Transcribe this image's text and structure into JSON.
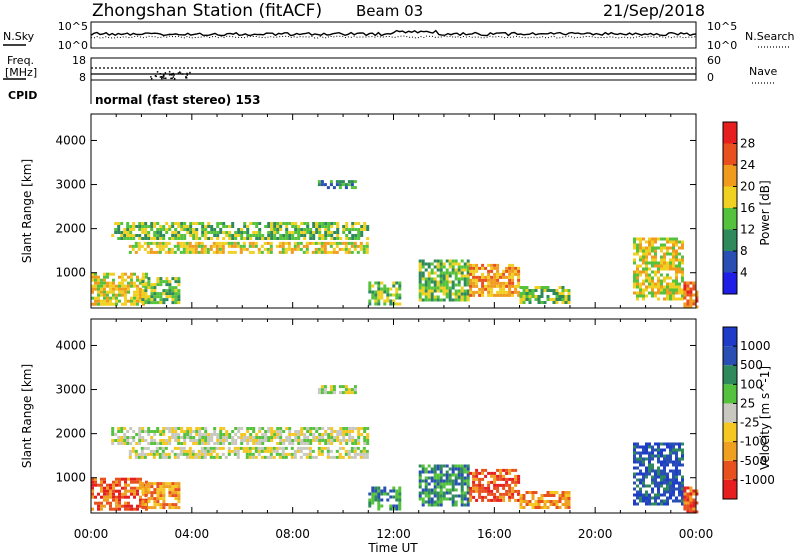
{
  "header": {
    "station": "Zhongshan Station (fitACF)",
    "beam": "Beam 03",
    "date": "21/Sep/2018"
  },
  "noise_panel": {
    "left_label": "N.Sky",
    "right_label": "N.Search",
    "left_ticks": [
      "10^5",
      "10^0"
    ],
    "right_ticks": [
      "10^5",
      "10^0"
    ]
  },
  "freq_panel": {
    "label_line1": "Freq.",
    "label_line2": "[MHz]",
    "left_ticks": [
      "18",
      "8"
    ],
    "right_label": "Nave",
    "right_ticks": [
      "60",
      "0"
    ]
  },
  "cpid": {
    "label": "CPID",
    "text": "normal (fast stereo) 153"
  },
  "time_axis": {
    "label": "Time UT",
    "ticks": [
      "00:00",
      "04:00",
      "08:00",
      "12:00",
      "16:00",
      "20:00",
      "00:00"
    ]
  },
  "colors": {
    "power": [
      "#1e1ee6",
      "#2a4fb4",
      "#2e8a5a",
      "#55c23d",
      "#f0d020",
      "#f09a1e",
      "#e8501e",
      "#e61e1e"
    ],
    "velocity": [
      "#e61e1e",
      "#e8501e",
      "#f0a020",
      "#f4c820",
      "#c8c8c0",
      "#55c23d",
      "#2e8a5a",
      "#2a4fb4",
      "#1e3cc8"
    ]
  },
  "chart_data": [
    {
      "type": "heatmap",
      "title": "",
      "xlabel": "Time UT",
      "ylabel": "Slant Range [km]",
      "xlim": [
        0,
        24
      ],
      "ylim": [
        200,
        4600
      ],
      "yticks": [
        "4000",
        "3000",
        "2000",
        "1000"
      ],
      "colorbar": {
        "label": "Power [dB]",
        "ticks": [
          "28",
          "24",
          "20",
          "16",
          "12",
          "8",
          "4"
        ]
      },
      "echo_regions": [
        {
          "t_start": 0.0,
          "t_end": 2.2,
          "range_min": 300,
          "range_max": 1000,
          "level": 4
        },
        {
          "t_start": 0.8,
          "t_end": 11.0,
          "range_min": 1750,
          "range_max": 2150,
          "level": 3
        },
        {
          "t_start": 1.5,
          "t_end": 11.0,
          "range_min": 1450,
          "range_max": 1700,
          "level": 4
        },
        {
          "t_start": 2.0,
          "t_end": 3.5,
          "range_min": 300,
          "range_max": 900,
          "level": 3
        },
        {
          "t_start": 9.0,
          "t_end": 10.5,
          "range_min": 2900,
          "range_max": 3100,
          "level": 2
        },
        {
          "t_start": 11.0,
          "t_end": 12.2,
          "range_min": 300,
          "range_max": 800,
          "level": 3
        },
        {
          "t_start": 13.0,
          "t_end": 15.0,
          "range_min": 400,
          "range_max": 1300,
          "level": 3
        },
        {
          "t_start": 15.0,
          "t_end": 17.0,
          "range_min": 500,
          "range_max": 1200,
          "level": 5
        },
        {
          "t_start": 17.0,
          "t_end": 19.0,
          "range_min": 300,
          "range_max": 700,
          "level": 3
        },
        {
          "t_start": 21.5,
          "t_end": 23.5,
          "range_min": 400,
          "range_max": 1800,
          "level": 4
        },
        {
          "t_start": 23.5,
          "t_end": 24.0,
          "range_min": 200,
          "range_max": 800,
          "level": 6
        }
      ]
    },
    {
      "type": "heatmap",
      "title": "",
      "xlabel": "Time UT",
      "ylabel": "Slant Range [km]",
      "xlim": [
        0,
        24
      ],
      "ylim": [
        200,
        4600
      ],
      "yticks": [
        "4000",
        "3000",
        "2000",
        "1000"
      ],
      "colorbar": {
        "label": "Velocity [m s^-1]",
        "ticks": [
          "1000",
          "500",
          "100",
          "25",
          "-25",
          "-100",
          "-500",
          "-1000"
        ]
      },
      "echo_regions": [
        {
          "t_start": 0.0,
          "t_end": 2.2,
          "range_min": 300,
          "range_max": 1000,
          "level": 1
        },
        {
          "t_start": 0.8,
          "t_end": 11.0,
          "range_min": 1750,
          "range_max": 2150,
          "level": 4
        },
        {
          "t_start": 1.5,
          "t_end": 11.0,
          "range_min": 1450,
          "range_max": 1700,
          "level": 4
        },
        {
          "t_start": 2.0,
          "t_end": 3.5,
          "range_min": 300,
          "range_max": 900,
          "level": 2
        },
        {
          "t_start": 9.0,
          "t_end": 10.5,
          "range_min": 2900,
          "range_max": 3100,
          "level": 4
        },
        {
          "t_start": 11.0,
          "t_end": 12.2,
          "range_min": 300,
          "range_max": 800,
          "level": 6
        },
        {
          "t_start": 13.0,
          "t_end": 15.0,
          "range_min": 400,
          "range_max": 1300,
          "level": 6
        },
        {
          "t_start": 15.0,
          "t_end": 17.0,
          "range_min": 500,
          "range_max": 1200,
          "level": 1
        },
        {
          "t_start": 17.0,
          "t_end": 19.0,
          "range_min": 300,
          "range_max": 700,
          "level": 2
        },
        {
          "t_start": 21.5,
          "t_end": 23.5,
          "range_min": 400,
          "range_max": 1800,
          "level": 7
        },
        {
          "t_start": 23.5,
          "t_end": 24.0,
          "range_min": 200,
          "range_max": 800,
          "level": 1
        }
      ]
    }
  ]
}
